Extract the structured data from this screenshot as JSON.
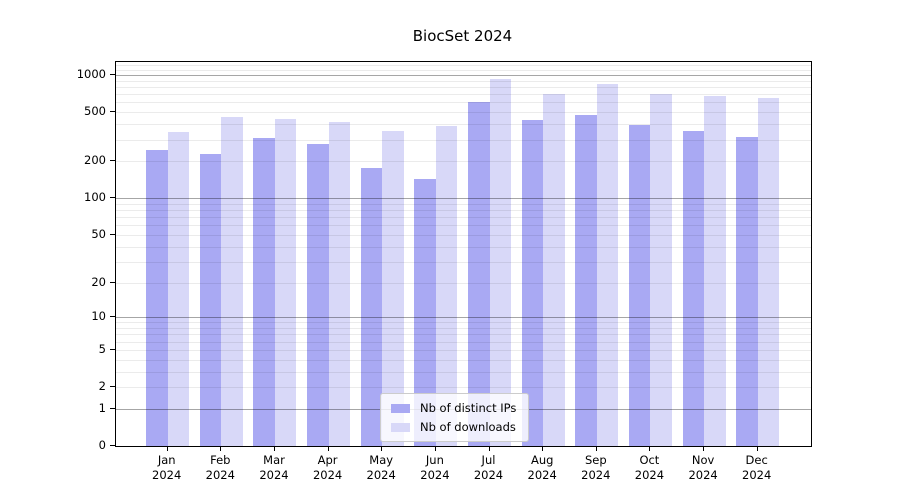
{
  "chart_data": {
    "type": "bar",
    "title": "BiocSet 2024",
    "categories": [
      "Jan",
      "Feb",
      "Mar",
      "Apr",
      "May",
      "Jun",
      "Jul",
      "Aug",
      "Sep",
      "Oct",
      "Nov",
      "Dec"
    ],
    "year_label": "2024",
    "categories_full": [
      "Jan 2024",
      "Feb 2024",
      "Mar 2024",
      "Apr 2024",
      "May 2024",
      "Jun 2024",
      "Jul 2024",
      "Aug 2024",
      "Sep 2024",
      "Oct 2024",
      "Nov 2024",
      "Dec 2024"
    ],
    "series": [
      {
        "name": "Nb of distinct IPs",
        "color": "#a9a9f3",
        "values": [
          245,
          230,
          308,
          278,
          176,
          143,
          602,
          434,
          477,
          395,
          353,
          314
        ]
      },
      {
        "name": "Nb of downloads",
        "color": "#d8d8f8",
        "values": [
          346,
          461,
          438,
          419,
          354,
          385,
          934,
          699,
          847,
          706,
          680,
          651
        ]
      }
    ],
    "yscale": "log1p",
    "ylim": [
      0,
      1275
    ],
    "yticks": [
      0,
      1,
      2,
      5,
      10,
      20,
      50,
      100,
      200,
      500,
      1000
    ],
    "major_decade_gridlines": [
      1,
      10,
      100,
      1000
    ],
    "minor_gridlines": [
      2,
      3,
      4,
      5,
      6,
      7,
      8,
      9,
      20,
      30,
      40,
      50,
      60,
      70,
      80,
      90,
      200,
      300,
      400,
      500,
      600,
      700,
      800,
      900,
      1100,
      1200
    ],
    "grid": "horizontal, drawn over bars",
    "legend_position": "bottom-center",
    "xlabel": "",
    "ylabel": ""
  }
}
